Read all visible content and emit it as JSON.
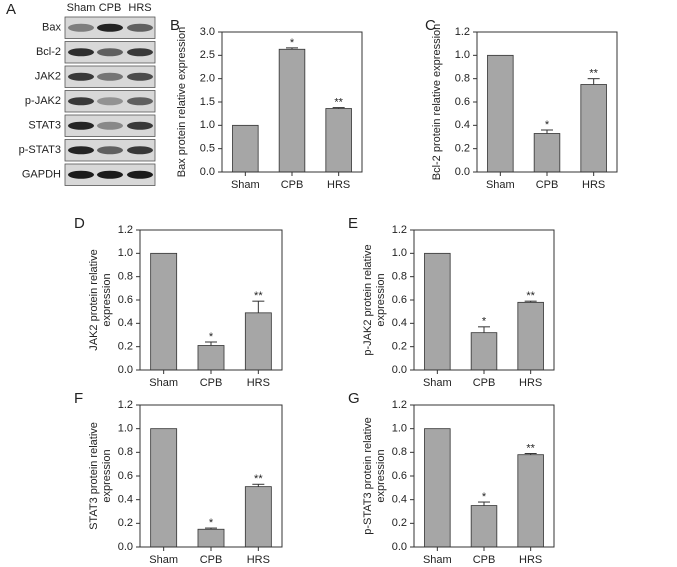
{
  "blot": {
    "panel": "A",
    "columns": [
      "Sham",
      "CPB",
      "HRS"
    ],
    "rows": [
      "Bax",
      "Bcl-2",
      "JAK2",
      "p-JAK2",
      "STAT3",
      "p-STAT3",
      "GAPDH"
    ]
  },
  "chart_data": [
    {
      "type": "bar",
      "panel": "B",
      "ylabel": [
        "Bax protein relative expression"
      ],
      "categories": [
        "Sham",
        "CPB",
        "HRS"
      ],
      "values": [
        1.0,
        2.63,
        1.36
      ],
      "errors": [
        null,
        0.03,
        0.02
      ],
      "annotations": [
        null,
        "*",
        "**"
      ],
      "color": "#a6a6a6",
      "ylim": [
        0,
        3.0
      ],
      "yticks": [
        {
          "value": 0,
          "label": "0.0"
        },
        0.5,
        {
          "value": 1,
          "label": "1.0"
        },
        1.5,
        {
          "value": 2,
          "label": "2.0"
        },
        2.5,
        {
          "value": 3,
          "label": "3.0"
        }
      ]
    },
    {
      "type": "bar",
      "panel": "C",
      "ylabel": [
        "Bcl-2 protein relative expression"
      ],
      "categories": [
        "Sham",
        "CPB",
        "HRS"
      ],
      "values": [
        1.0,
        0.33,
        0.75
      ],
      "errors": [
        null,
        0.03,
        0.05
      ],
      "annotations": [
        null,
        "*",
        "**"
      ],
      "color": "#a6a6a6",
      "ylim": [
        0,
        1.2
      ],
      "yticks": [
        {
          "value": 0,
          "label": "0.0"
        },
        0.2,
        0.4,
        0.6,
        0.8,
        {
          "value": 1,
          "label": "1.0"
        },
        1.2
      ]
    },
    {
      "type": "bar",
      "panel": "D",
      "ylabel": [
        "JAK2 protein relative",
        "expression"
      ],
      "categories": [
        "Sham",
        "CPB",
        "HRS"
      ],
      "values": [
        1.0,
        0.21,
        0.49
      ],
      "errors": [
        null,
        0.03,
        0.1
      ],
      "annotations": [
        null,
        "*",
        "**"
      ],
      "color": "#a6a6a6",
      "ylim": [
        0,
        1.2
      ],
      "yticks": [
        {
          "value": 0,
          "label": "0.0"
        },
        0.2,
        0.4,
        0.6,
        0.8,
        {
          "value": 1,
          "label": "1.0"
        },
        1.2
      ]
    },
    {
      "type": "bar",
      "panel": "E",
      "ylabel": [
        "p-JAK2 protein relative",
        "expression"
      ],
      "categories": [
        "Sham",
        "CPB",
        "HRS"
      ],
      "values": [
        1.0,
        0.32,
        0.58
      ],
      "errors": [
        null,
        0.05,
        0.01
      ],
      "annotations": [
        null,
        "*",
        "**"
      ],
      "color": "#a6a6a6",
      "ylim": [
        0,
        1.2
      ],
      "yticks": [
        {
          "value": 0,
          "label": "0.0"
        },
        0.2,
        0.4,
        0.6,
        0.8,
        {
          "value": 1,
          "label": "1.0"
        },
        1.2
      ]
    },
    {
      "type": "bar",
      "panel": "F",
      "ylabel": [
        "STAT3 protein relative",
        "expression"
      ],
      "categories": [
        "Sham",
        "CPB",
        "HRS"
      ],
      "values": [
        1.0,
        0.15,
        0.51
      ],
      "errors": [
        null,
        0.01,
        0.02
      ],
      "annotations": [
        null,
        "*",
        "**"
      ],
      "color": "#a6a6a6",
      "ylim": [
        0,
        1.2
      ],
      "yticks": [
        {
          "value": 0,
          "label": "0.0"
        },
        0.2,
        0.4,
        0.6,
        0.8,
        {
          "value": 1,
          "label": "1.0"
        },
        1.2
      ]
    },
    {
      "type": "bar",
      "panel": "G",
      "ylabel": [
        "p-STAT3 protein relative",
        "expression"
      ],
      "categories": [
        "Sham",
        "CPB",
        "HRS"
      ],
      "values": [
        1.0,
        0.35,
        0.78
      ],
      "errors": [
        null,
        0.03,
        0.01
      ],
      "annotations": [
        null,
        "*",
        "**"
      ],
      "color": "#a6a6a6",
      "ylim": [
        0,
        1.2
      ],
      "yticks": [
        {
          "value": 0,
          "label": "0.0"
        },
        0.2,
        0.4,
        0.6,
        0.8,
        {
          "value": 1,
          "label": "1.0"
        },
        1.2
      ]
    }
  ]
}
